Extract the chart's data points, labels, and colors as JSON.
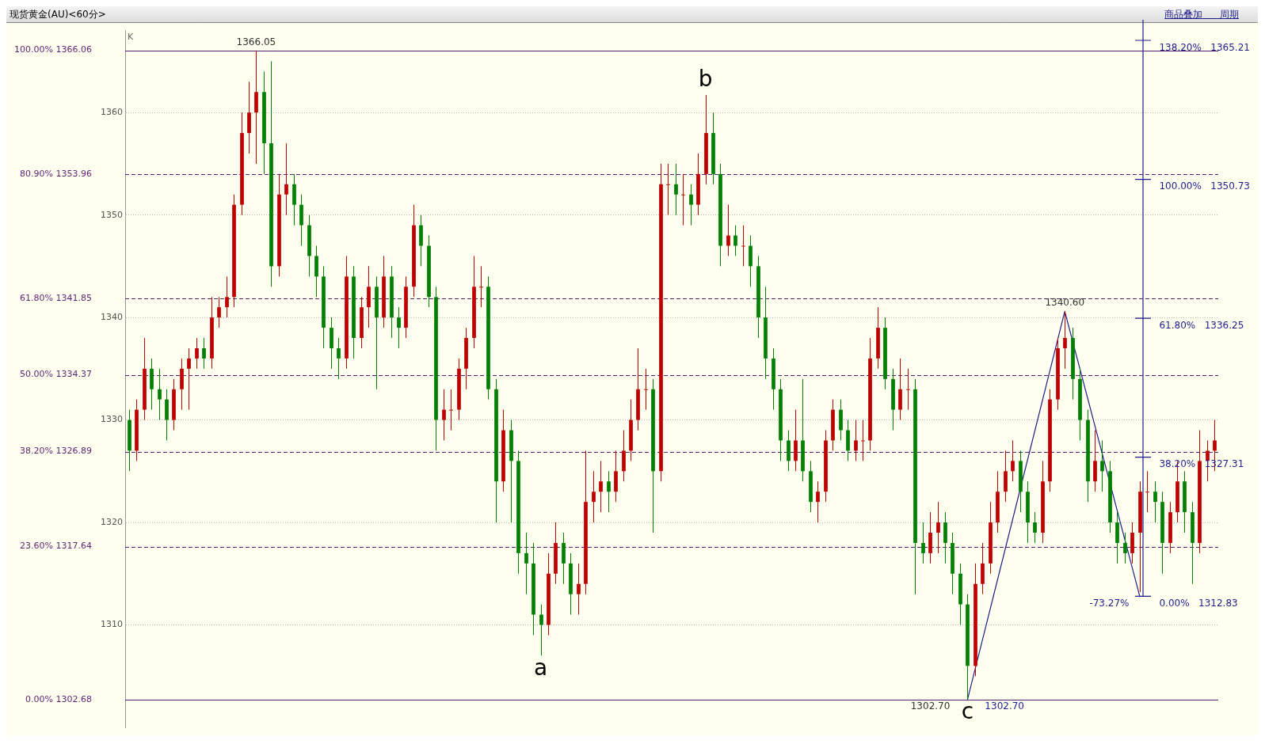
{
  "chart_data": {
    "type": "candlestick",
    "title": "现货黄金(AU)<60分>",
    "ylabel": "K",
    "categories": [
      null,
      null,
      null,
      null,
      null,
      null,
      null,
      null,
      null,
      null,
      null,
      null,
      null,
      null,
      null,
      null,
      null,
      null,
      null,
      null,
      null,
      null,
      null,
      null,
      null,
      null,
      null,
      null,
      null,
      null,
      null,
      null,
      null,
      null,
      null,
      null,
      null,
      null,
      null,
      null,
      null,
      null,
      null,
      null,
      null,
      null,
      null,
      null,
      null,
      null,
      null,
      null,
      null,
      null,
      null,
      null,
      null,
      null,
      null,
      null,
      null,
      null,
      null,
      null,
      null,
      null,
      null,
      null,
      null,
      null,
      null,
      null,
      null,
      null,
      null,
      null,
      null,
      null,
      null,
      null,
      null,
      null,
      null,
      null,
      null,
      null,
      null,
      null,
      null,
      null,
      null,
      null,
      null,
      null,
      null,
      null,
      null,
      null,
      null,
      null,
      null,
      null,
      null,
      null,
      null,
      null,
      null,
      null,
      null,
      null,
      null,
      null,
      null,
      null,
      null,
      null,
      null,
      null,
      null,
      null,
      null,
      null,
      null,
      null,
      null,
      null,
      null,
      null,
      null,
      null,
      null,
      null,
      null,
      null,
      null,
      null,
      null,
      null,
      null,
      null,
      null,
      null,
      null,
      null,
      null,
      null
    ],
    "ohlc": [
      [
        1330,
        1331,
        1325,
        1327
      ],
      [
        1327,
        1332,
        1326,
        1331
      ],
      [
        1331,
        1338,
        1330,
        1335
      ],
      [
        1335,
        1336,
        1331,
        1333
      ],
      [
        1333,
        1335,
        1330,
        1332
      ],
      [
        1332,
        1333,
        1328,
        1330
      ],
      [
        1330,
        1334,
        1329,
        1333
      ],
      [
        1333,
        1336,
        1331,
        1335
      ],
      [
        1335,
        1337,
        1331,
        1336
      ],
      [
        1336,
        1338,
        1335,
        1337
      ],
      [
        1337,
        1338,
        1335,
        1336
      ],
      [
        1336,
        1342,
        1335,
        1340
      ],
      [
        1340,
        1342,
        1339,
        1341
      ],
      [
        1341,
        1344,
        1340,
        1342
      ],
      [
        1342,
        1352,
        1341,
        1351
      ],
      [
        1351,
        1360,
        1350,
        1358
      ],
      [
        1358,
        1363,
        1356,
        1360
      ],
      [
        1360,
        1366.05,
        1355,
        1362
      ],
      [
        1362,
        1364,
        1354,
        1357
      ],
      [
        1357,
        1365,
        1343,
        1345
      ],
      [
        1345,
        1354,
        1344,
        1352
      ],
      [
        1352,
        1357,
        1350,
        1353
      ],
      [
        1353,
        1354,
        1349,
        1351
      ],
      [
        1351,
        1352,
        1347,
        1349
      ],
      [
        1349,
        1350,
        1344,
        1346
      ],
      [
        1346,
        1347,
        1342,
        1344
      ],
      [
        1344,
        1345,
        1337,
        1339
      ],
      [
        1339,
        1340,
        1335,
        1337
      ],
      [
        1337,
        1338,
        1334,
        1336
      ],
      [
        1336,
        1346,
        1335,
        1344
      ],
      [
        1344,
        1345,
        1336,
        1338
      ],
      [
        1338,
        1342,
        1337,
        1341
      ],
      [
        1341,
        1345,
        1339,
        1343
      ],
      [
        1343,
        1344,
        1333,
        1340
      ],
      [
        1340,
        1346,
        1339,
        1344
      ],
      [
        1344,
        1345,
        1338,
        1340
      ],
      [
        1340,
        1341,
        1337,
        1339
      ],
      [
        1339,
        1344,
        1338,
        1343
      ],
      [
        1343,
        1351,
        1342,
        1349
      ],
      [
        1349,
        1350,
        1345,
        1347
      ],
      [
        1347,
        1348,
        1341,
        1342
      ],
      [
        1342,
        1343,
        1327,
        1330
      ],
      [
        1330,
        1333,
        1328,
        1331
      ],
      [
        1331,
        1333,
        1329,
        1331
      ],
      [
        1331,
        1336,
        1330,
        1335
      ],
      [
        1335,
        1339,
        1333,
        1338
      ],
      [
        1338,
        1346,
        1337,
        1343
      ],
      [
        1343,
        1345,
        1341,
        1343
      ],
      [
        1343,
        1344,
        1332,
        1333
      ],
      [
        1333,
        1334,
        1320,
        1324
      ],
      [
        1324,
        1331,
        1323,
        1329
      ],
      [
        1329,
        1330,
        1320,
        1326
      ],
      [
        1326,
        1327,
        1315,
        1317
      ],
      [
        1317,
        1319,
        1313,
        1316
      ],
      [
        1316,
        1318,
        1309,
        1311
      ],
      [
        1311,
        1312,
        1307,
        1310
      ],
      [
        1310,
        1317,
        1309,
        1315
      ],
      [
        1315,
        1320,
        1314,
        1318
      ],
      [
        1318,
        1319,
        1314,
        1316
      ],
      [
        1316,
        1317,
        1311,
        1313
      ],
      [
        1313,
        1316,
        1311,
        1314
      ],
      [
        1314,
        1327,
        1313,
        1322
      ],
      [
        1322,
        1325,
        1320,
        1323
      ],
      [
        1323,
        1326,
        1321,
        1324
      ],
      [
        1324,
        1325,
        1321,
        1323
      ],
      [
        1323,
        1327,
        1322,
        1325
      ],
      [
        1325,
        1329,
        1324,
        1327
      ],
      [
        1327,
        1332,
        1326,
        1330
      ],
      [
        1330,
        1337,
        1329,
        1333
      ],
      [
        1333,
        1335,
        1331,
        1333
      ],
      [
        1333,
        1334,
        1319,
        1325
      ],
      [
        1325,
        1355,
        1324,
        1353
      ],
      [
        1353,
        1355,
        1350,
        1353
      ],
      [
        1353,
        1355,
        1350,
        1352
      ],
      [
        1352,
        1354,
        1349,
        1352
      ],
      [
        1352,
        1353,
        1349,
        1351
      ],
      [
        1351,
        1356,
        1350,
        1354
      ],
      [
        1354,
        1361.7,
        1353,
        1358
      ],
      [
        1358,
        1360,
        1353,
        1354
      ],
      [
        1354,
        1355,
        1345,
        1347
      ],
      [
        1347,
        1351,
        1346,
        1348
      ],
      [
        1348,
        1349,
        1346,
        1347
      ],
      [
        1347,
        1349,
        1345,
        1347
      ],
      [
        1347,
        1348,
        1343,
        1345
      ],
      [
        1345,
        1346,
        1338,
        1340
      ],
      [
        1340,
        1343,
        1334,
        1336
      ],
      [
        1336,
        1337,
        1331,
        1333
      ],
      [
        1333,
        1334,
        1326,
        1328
      ],
      [
        1328,
        1329,
        1325,
        1326
      ],
      [
        1326,
        1331,
        1325,
        1328
      ],
      [
        1328,
        1334,
        1324,
        1325
      ],
      [
        1325,
        1326,
        1321,
        1322
      ],
      [
        1322,
        1324,
        1320,
        1323
      ],
      [
        1323,
        1329,
        1322,
        1328
      ],
      [
        1328,
        1332,
        1327,
        1331
      ],
      [
        1331,
        1332,
        1328,
        1329
      ],
      [
        1329,
        1330,
        1326,
        1327
      ],
      [
        1327,
        1330,
        1326,
        1328
      ],
      [
        1328,
        1330,
        1326,
        1328
      ],
      [
        1328,
        1338,
        1327,
        1336
      ],
      [
        1336,
        1341,
        1335,
        1339
      ],
      [
        1339,
        1340,
        1333,
        1334
      ],
      [
        1334,
        1335,
        1329,
        1331
      ],
      [
        1331,
        1336,
        1330,
        1333
      ],
      [
        1333,
        1335,
        1331,
        1333
      ],
      [
        1333,
        1334,
        1313,
        1318
      ],
      [
        1318,
        1320,
        1316,
        1317
      ],
      [
        1317,
        1321,
        1316,
        1319
      ],
      [
        1319,
        1322,
        1317,
        1320
      ],
      [
        1320,
        1321,
        1316,
        1318
      ],
      [
        1318,
        1319,
        1313,
        1315
      ],
      [
        1315,
        1316,
        1310,
        1312
      ],
      [
        1312,
        1313,
        1302.7,
        1306
      ],
      [
        1306,
        1316,
        1305,
        1314
      ],
      [
        1314,
        1318,
        1313,
        1316
      ],
      [
        1316,
        1322,
        1315,
        1320
      ],
      [
        1320,
        1325,
        1319,
        1323
      ],
      [
        1323,
        1327,
        1322,
        1325
      ],
      [
        1325,
        1328,
        1324,
        1326
      ],
      [
        1326,
        1327,
        1321,
        1323
      ],
      [
        1323,
        1324,
        1318,
        1320
      ],
      [
        1320,
        1321,
        1318,
        1319
      ],
      [
        1319,
        1326,
        1318,
        1324
      ],
      [
        1324,
        1333,
        1323,
        1332
      ],
      [
        1332,
        1338,
        1331,
        1337
      ],
      [
        1337,
        1340.6,
        1335,
        1338
      ],
      [
        1338,
        1339,
        1332,
        1334
      ],
      [
        1334,
        1335,
        1328,
        1330
      ],
      [
        1330,
        1331,
        1322,
        1324
      ],
      [
        1324,
        1329,
        1323,
        1326
      ],
      [
        1326,
        1328,
        1323,
        1325
      ],
      [
        1325,
        1326,
        1319,
        1320
      ],
      [
        1320,
        1321,
        1316,
        1318
      ],
      [
        1318,
        1319,
        1316,
        1317
      ],
      [
        1317,
        1320,
        1316,
        1319
      ],
      [
        1319,
        1324,
        1313.2,
        1323
      ],
      [
        1323,
        1325,
        1321,
        1323
      ],
      [
        1323,
        1324,
        1320,
        1322
      ],
      [
        1322,
        1323,
        1315,
        1318
      ],
      [
        1318,
        1322,
        1317,
        1321
      ],
      [
        1321,
        1326,
        1320,
        1324
      ],
      [
        1324,
        1325,
        1319,
        1321
      ],
      [
        1321,
        1322,
        1314,
        1318
      ],
      [
        1318,
        1329,
        1317,
        1326
      ],
      [
        1326,
        1328,
        1324,
        1327
      ],
      [
        1327,
        1330,
        1325,
        1328
      ]
    ],
    "colors": [
      "#008000",
      "#c00000",
      "#c00000",
      "#008000",
      "#008000",
      "#008000",
      "#c00000",
      "#c00000",
      "#c00000",
      "#c00000",
      "#008000",
      "#c00000",
      "#c00000",
      "#c00000",
      "#c00000",
      "#c00000",
      "#c00000",
      "#c00000",
      "#008000",
      "#008000",
      "#c00000",
      "#c00000",
      "#008000",
      "#008000",
      "#008000",
      "#008000",
      "#008000",
      "#008000",
      "#008000",
      "#c00000",
      "#008000",
      "#c00000",
      "#c00000",
      "#008000",
      "#c00000",
      "#008000",
      "#008000",
      "#c00000",
      "#c00000",
      "#008000",
      "#008000",
      "#008000",
      "#c00000",
      "#c00000",
      "#c00000",
      "#c00000",
      "#c00000",
      "#c00000",
      "#008000",
      "#008000",
      "#c00000",
      "#008000",
      "#008000",
      "#008000",
      "#008000",
      "#008000",
      "#c00000",
      "#c00000",
      "#008000",
      "#008000",
      "#c00000",
      "#c00000",
      "#c00000",
      "#c00000",
      "#008000",
      "#c00000",
      "#c00000",
      "#c00000",
      "#c00000",
      "#c00000",
      "#008000",
      "#c00000",
      "#c00000",
      "#008000",
      "#c00000",
      "#008000",
      "#c00000",
      "#c00000",
      "#008000",
      "#008000",
      "#c00000",
      "#008000",
      "#c00000",
      "#008000",
      "#008000",
      "#008000",
      "#008000",
      "#008000",
      "#008000",
      "#c00000",
      "#008000",
      "#008000",
      "#c00000",
      "#c00000",
      "#c00000",
      "#008000",
      "#008000",
      "#c00000",
      "#c00000",
      "#c00000",
      "#c00000",
      "#008000",
      "#008000",
      "#c00000",
      "#c00000",
      "#008000",
      "#008000",
      "#c00000",
      "#c00000",
      "#008000",
      "#008000",
      "#008000",
      "#008000",
      "#c00000",
      "#c00000",
      "#c00000",
      "#c00000",
      "#c00000",
      "#c00000",
      "#008000",
      "#008000",
      "#008000",
      "#c00000",
      "#c00000",
      "#c00000",
      "#c00000",
      "#008000",
      "#008000",
      "#008000",
      "#c00000",
      "#008000",
      "#008000",
      "#008000",
      "#008000",
      "#c00000",
      "#c00000",
      "#c00000",
      "#008000",
      "#008000",
      "#c00000",
      "#c00000",
      "#008000",
      "#008000",
      "#c00000",
      "#c00000",
      "#c00000"
    ],
    "series": [
      {
        "type": "line",
        "color": "#1c1c8c",
        "values": [
          null,
          null,
          null,
          null,
          null,
          null,
          null,
          null,
          null,
          null,
          null,
          null,
          null,
          null,
          null,
          null,
          null,
          null,
          null,
          null,
          null,
          null,
          null,
          null,
          null,
          null,
          null,
          null,
          null,
          null,
          null,
          null,
          null,
          null,
          null,
          null,
          null,
          null,
          null,
          null,
          null,
          null,
          null,
          null,
          null,
          null,
          null,
          null,
          null,
          null,
          null,
          null,
          null,
          null,
          null,
          null,
          null,
          null,
          null,
          null,
          null,
          null,
          null,
          null,
          null,
          null,
          null,
          null,
          null,
          null,
          null,
          null,
          null,
          null,
          null,
          null,
          null,
          null,
          null,
          null,
          null,
          null,
          null,
          null,
          null,
          null,
          null,
          null,
          null,
          null,
          null,
          null,
          null,
          null,
          null,
          null,
          null,
          null,
          null,
          null,
          null,
          null,
          null,
          null,
          null,
          null,
          null,
          null,
          null,
          null,
          null,
          null,
          1302.7,
          null,
          null,
          null,
          null,
          null,
          null,
          null,
          null,
          null,
          null,
          null,
          null,
          1340.6,
          null,
          null,
          null,
          null,
          null,
          null,
          null,
          null,
          null,
          1312.83,
          null,
          null,
          null,
          null,
          null,
          null,
          null,
          null,
          null,
          null
        ]
      }
    ],
    "ylim": [
      1300,
      1368
    ],
    "yticks": [
      1310,
      1320,
      1330,
      1340,
      1350,
      1360
    ],
    "grid": "y",
    "tick_labels": "y",
    "ref_lines": [
      {
        "axis": "y",
        "value": 1366.06,
        "label": "100.00% 1366.06",
        "color": "#5b1f73",
        "line_style": "solid"
      },
      {
        "axis": "y",
        "value": 1353.96,
        "label": "80.90% 1353.96",
        "color": "#5b1f73",
        "line_style": "dashed"
      },
      {
        "axis": "y",
        "value": 1341.85,
        "label": "61.80% 1341.85",
        "color": "#5b1f73",
        "line_style": "dashed"
      },
      {
        "axis": "y",
        "value": 1334.37,
        "label": "50.00% 1334.37",
        "color": "#5b1f73",
        "line_style": "dashed"
      },
      {
        "axis": "y",
        "value": 1326.89,
        "label": "38.20% 1326.89",
        "color": "#5b1f73",
        "line_style": "dashed"
      },
      {
        "axis": "y",
        "value": 1317.64,
        "label": "23.60% 1317.64",
        "color": "#5b1f73",
        "line_style": "dashed"
      },
      {
        "axis": "y",
        "value": 1302.68,
        "label": "0.00% 1302.68",
        "color": "#5b1f73",
        "line_style": "solid"
      }
    ],
    "subtitle": "商品叠加 周期",
    "annotations": [
      {
        "text": "1366.05",
        "y": 1366.05
      },
      {
        "text": "b",
        "y": 1361.7
      },
      {
        "text": "a",
        "y": 1307
      },
      {
        "text": "c",
        "y": 1302.7
      },
      {
        "text": "1302.70",
        "y": 1302.7
      },
      {
        "text": "1302.70",
        "y": 1302.7
      },
      {
        "text": "1340.60",
        "y": 1340.6
      },
      "138.20%   1365.21",
      "100.00%   1350.73",
      "61.80%   1336.25",
      "38.20%   1327.31",
      "0.00%   1312.83",
      "-73.27%"
    ]
  }
}
